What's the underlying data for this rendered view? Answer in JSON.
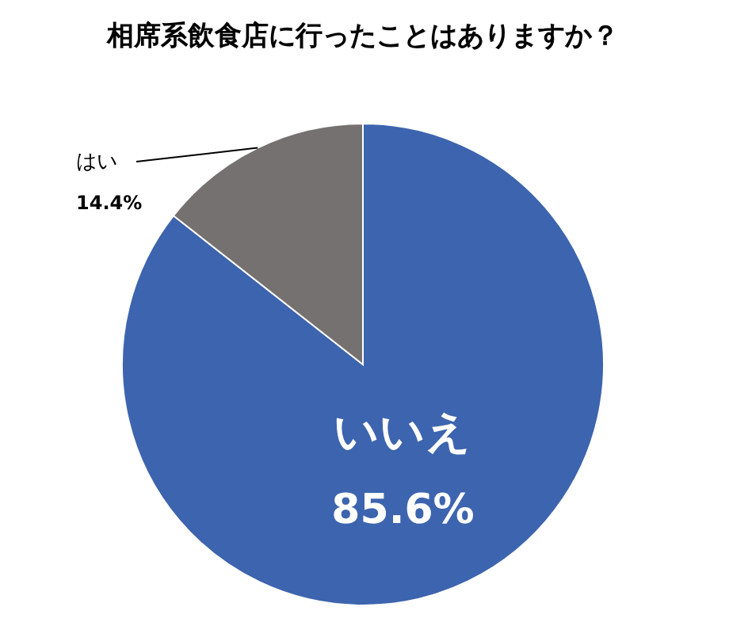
{
  "chart_data": {
    "type": "pie",
    "title": "相席系飲食店に行ったことはありますか？",
    "categories": [
      "いいえ",
      "はい"
    ],
    "values": [
      85.6,
      14.4
    ],
    "value_labels": [
      "85.6%",
      "14.4%"
    ],
    "colors": [
      "#3d64ae",
      "#767171"
    ]
  }
}
